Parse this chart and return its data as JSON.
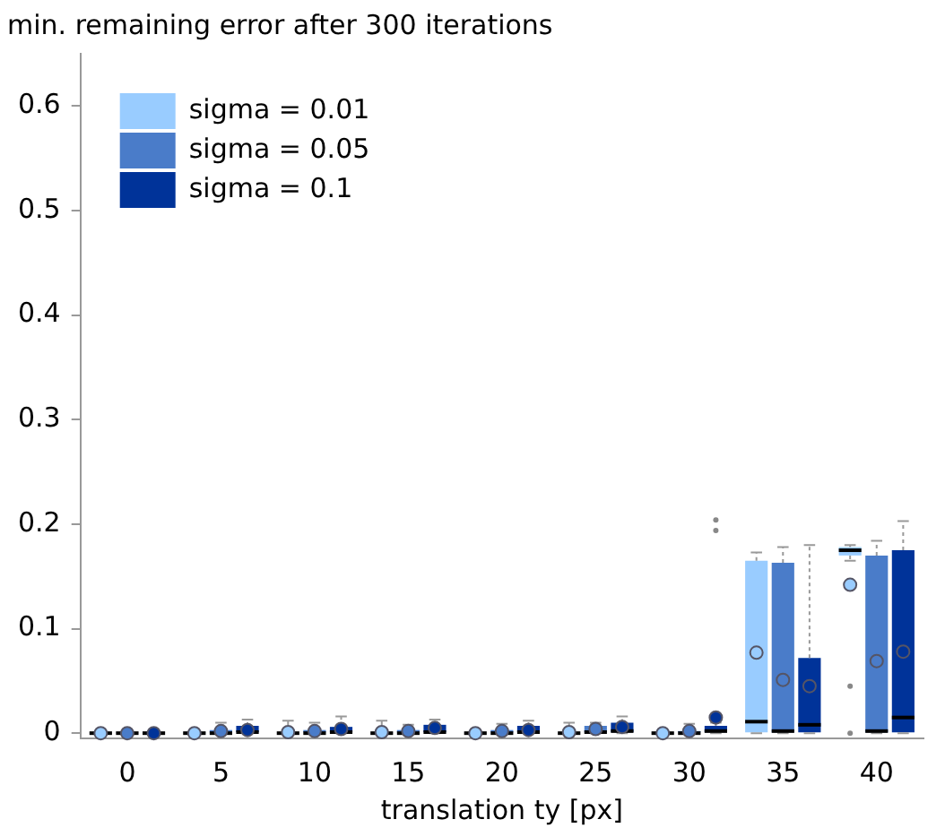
{
  "chart_data": {
    "type": "box",
    "title": "min. remaining error after 300 iterations",
    "xlabel": "translation ty [px]",
    "categories": [
      "0",
      "5",
      "10",
      "15",
      "20",
      "25",
      "30",
      "35",
      "40"
    ],
    "ylim": [
      -0.005,
      0.65
    ],
    "yticks": [
      0,
      0.1,
      0.2,
      0.3,
      0.4,
      0.5,
      0.6
    ],
    "grid": false,
    "legend": "top left",
    "series": [
      {
        "name": "sigma = 0.01",
        "color": "#99ccff",
        "boxes": [
          {
            "low": 0,
            "q1": 0,
            "median": 0,
            "q3": 0.001,
            "high": 0.002,
            "mean": 0
          },
          {
            "low": 0,
            "q1": 0,
            "median": 0,
            "q3": 0.001,
            "high": 0.002,
            "mean": 0
          },
          {
            "low": 0,
            "q1": 0,
            "median": 0,
            "q3": 0.001,
            "high": 0.012,
            "mean": 0.001
          },
          {
            "low": 0,
            "q1": 0,
            "median": 0,
            "q3": 0.001,
            "high": 0.012,
            "mean": 0.001
          },
          {
            "low": 0,
            "q1": 0,
            "median": 0,
            "q3": 0.001,
            "high": 0.003,
            "mean": 0
          },
          {
            "low": 0,
            "q1": 0,
            "median": 0,
            "q3": 0.001,
            "high": 0.01,
            "mean": 0.001
          },
          {
            "low": 0,
            "q1": 0,
            "median": 0,
            "q3": 0.001,
            "high": 0.003,
            "mean": 0
          },
          {
            "low": 0,
            "q1": 0,
            "median": 0.011,
            "q3": 0.165,
            "high": 0.173,
            "mean": 0.077
          },
          {
            "low": 0.165,
            "q1": 0.17,
            "median": 0.175,
            "q3": 0.178,
            "high": 0.18,
            "mean": 0.142,
            "outliers": [
              0.045,
              0
            ]
          }
        ]
      },
      {
        "name": "sigma = 0.05",
        "color": "#4a7cc9",
        "boxes": [
          {
            "low": 0,
            "q1": 0,
            "median": 0,
            "q3": 0.001,
            "high": 0.002,
            "mean": 0
          },
          {
            "low": 0,
            "q1": 0,
            "median": 0,
            "q3": 0.003,
            "high": 0.01,
            "mean": 0.002
          },
          {
            "low": 0,
            "q1": 0,
            "median": 0,
            "q3": 0.003,
            "high": 0.01,
            "mean": 0.002
          },
          {
            "low": 0,
            "q1": 0,
            "median": 0,
            "q3": 0.003,
            "high": 0.008,
            "mean": 0.002
          },
          {
            "low": 0,
            "q1": 0,
            "median": 0,
            "q3": 0.003,
            "high": 0.009,
            "mean": 0.002
          },
          {
            "low": 0,
            "q1": 0,
            "median": 0.001,
            "q3": 0.007,
            "high": 0.01,
            "mean": 0.004
          },
          {
            "low": 0,
            "q1": 0,
            "median": 0,
            "q3": 0.002,
            "high": 0.009,
            "mean": 0.002
          },
          {
            "low": 0,
            "q1": 0,
            "median": 0.002,
            "q3": 0.163,
            "high": 0.178,
            "mean": 0.051
          },
          {
            "low": 0,
            "q1": 0,
            "median": 0.002,
            "q3": 0.17,
            "high": 0.184,
            "mean": 0.069
          }
        ]
      },
      {
        "name": "sigma = 0.1",
        "color": "#003399",
        "boxes": [
          {
            "low": 0,
            "q1": 0,
            "median": 0,
            "q3": 0.001,
            "high": 0.002,
            "mean": 0
          },
          {
            "low": 0,
            "q1": 0,
            "median": 0.001,
            "q3": 0.007,
            "high": 0.013,
            "mean": 0.003
          },
          {
            "low": 0,
            "q1": 0,
            "median": 0.001,
            "q3": 0.006,
            "high": 0.016,
            "mean": 0.004
          },
          {
            "low": 0,
            "q1": 0,
            "median": 0.001,
            "q3": 0.008,
            "high": 0.013,
            "mean": 0.005
          },
          {
            "low": 0,
            "q1": 0,
            "median": 0.001,
            "q3": 0.007,
            "high": 0.012,
            "mean": 0.003
          },
          {
            "low": 0,
            "q1": 0,
            "median": 0.002,
            "q3": 0.01,
            "high": 0.016,
            "mean": 0.006
          },
          {
            "low": 0,
            "q1": 0,
            "median": 0.002,
            "q3": 0.007,
            "high": 0.01,
            "mean": 0.015,
            "outliers": [
              0.204,
              0.194
            ]
          },
          {
            "low": 0,
            "q1": 0,
            "median": 0.008,
            "q3": 0.072,
            "high": 0.18,
            "mean": 0.045
          },
          {
            "low": 0,
            "q1": 0,
            "median": 0.015,
            "q3": 0.175,
            "high": 0.203,
            "mean": 0.078
          }
        ]
      }
    ]
  }
}
